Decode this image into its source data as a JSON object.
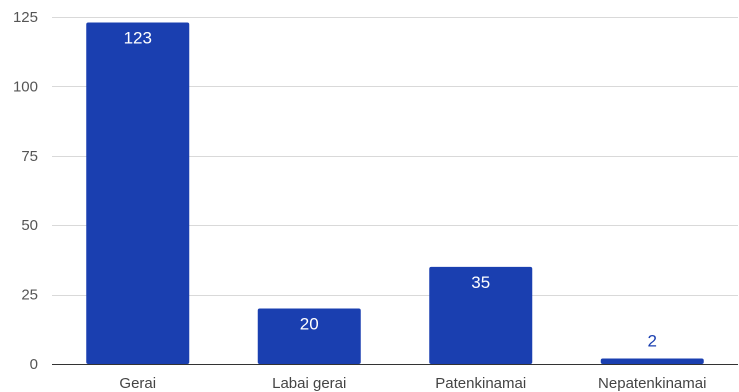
{
  "chart_data": {
    "type": "bar",
    "title": "",
    "xlabel": "",
    "ylabel": "",
    "categories": [
      "Gerai",
      "Labai gerai",
      "Patenkinamai",
      "Nepatenkinamai"
    ],
    "values": [
      123,
      20,
      35,
      2
    ],
    "value_labels": [
      "123",
      "20",
      "35",
      "2"
    ],
    "ylim": [
      0,
      125
    ],
    "yticks": [
      0,
      25,
      50,
      75,
      100,
      125
    ],
    "ytick_labels": [
      "0",
      "25",
      "50",
      "75",
      "100",
      "125"
    ],
    "grid": true,
    "legend": "none",
    "colors": {
      "bar": "#1a3fb0",
      "label_inside": "#ffffff",
      "label_outside": "#1a3fb0",
      "grid": "#d9d9d9",
      "axis": "#333333"
    }
  }
}
